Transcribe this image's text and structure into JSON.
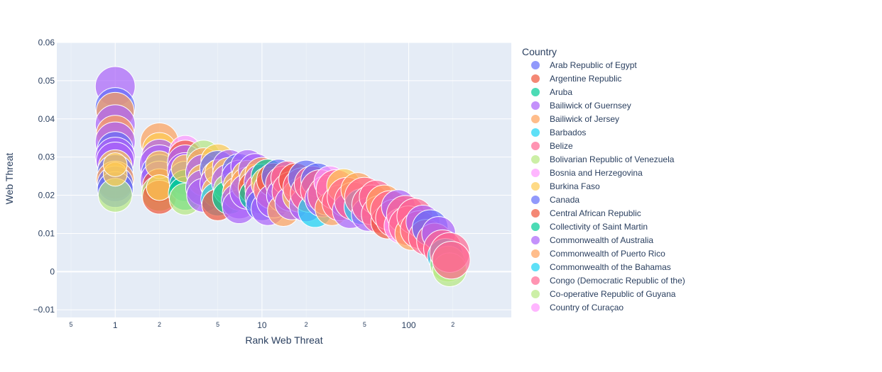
{
  "chart_data": {
    "type": "scatter",
    "title": "",
    "xlabel": "Rank Web Threat",
    "ylabel": "Web Threat",
    "x_scale": "log",
    "xlim": [
      0.4,
      500
    ],
    "ylim": [
      -0.012,
      0.06
    ],
    "grid": true,
    "legend_position": "right",
    "legend_title": "Country",
    "y_ticks": [
      "−0.01",
      "0",
      "0.01",
      "0.02",
      "0.03",
      "0.04",
      "0.05",
      "0.06"
    ],
    "y_tick_values": [
      -0.01,
      0,
      0.01,
      0.02,
      0.03,
      0.04,
      0.05,
      0.06
    ],
    "x_major_ticks": [
      {
        "value": 1,
        "label": "1"
      },
      {
        "value": 10,
        "label": "10"
      },
      {
        "value": 100,
        "label": "100"
      }
    ],
    "x_minor_ticks": [
      {
        "value": 0.5,
        "label": "5"
      },
      {
        "value": 2,
        "label": "2"
      },
      {
        "value": 5,
        "label": "5"
      },
      {
        "value": 20,
        "label": "2"
      },
      {
        "value": 50,
        "label": "5"
      },
      {
        "value": 200,
        "label": "2"
      }
    ],
    "series": [
      {
        "name": "Arab Republic of Egypt",
        "color": "#636efa"
      },
      {
        "name": "Argentine Republic",
        "color": "#EF553B"
      },
      {
        "name": "Aruba",
        "color": "#00cc96"
      },
      {
        "name": "Bailiwick of Guernsey",
        "color": "#ab63fa"
      },
      {
        "name": "Bailiwick of Jersey",
        "color": "#FFA15A"
      },
      {
        "name": "Barbados",
        "color": "#19d3f3"
      },
      {
        "name": "Belize",
        "color": "#FF6692"
      },
      {
        "name": "Bolivarian Republic of Venezuela",
        "color": "#B6E880"
      },
      {
        "name": "Bosnia and Herzegovina",
        "color": "#FF97FF"
      },
      {
        "name": "Burkina Faso",
        "color": "#FECB52"
      },
      {
        "name": "Canada",
        "color": "#636efa"
      },
      {
        "name": "Central African Republic",
        "color": "#EF553B"
      },
      {
        "name": "Collectivity of Saint Martin",
        "color": "#00cc96"
      },
      {
        "name": "Commonwealth of Australia",
        "color": "#ab63fa"
      },
      {
        "name": "Commonwealth of Puerto Rico",
        "color": "#FFA15A"
      },
      {
        "name": "Commonwealth of the Bahamas",
        "color": "#19d3f3"
      },
      {
        "name": "Congo (Democratic Republic of the)",
        "color": "#FF6692"
      },
      {
        "name": "Co-operative Republic of Guyana",
        "color": "#B6E880"
      },
      {
        "name": "Country of Curaçao",
        "color": "#FF97FF"
      }
    ],
    "points": [
      {
        "x": 1,
        "y": 0.0485,
        "s": 1.0,
        "c": 3
      },
      {
        "x": 1,
        "y": 0.043,
        "s": 1.0,
        "c": 0
      },
      {
        "x": 1,
        "y": 0.042,
        "s": 0.95,
        "c": 4
      },
      {
        "x": 1,
        "y": 0.0385,
        "s": 1.0,
        "c": 3
      },
      {
        "x": 1,
        "y": 0.036,
        "s": 0.95,
        "c": 4
      },
      {
        "x": 1,
        "y": 0.034,
        "s": 1.0,
        "c": 3
      },
      {
        "x": 1,
        "y": 0.032,
        "s": 0.9,
        "c": 0
      },
      {
        "x": 1,
        "y": 0.03,
        "s": 1.0,
        "c": 13
      },
      {
        "x": 1,
        "y": 0.029,
        "s": 0.95,
        "c": 3
      },
      {
        "x": 1,
        "y": 0.0275,
        "s": 0.85,
        "c": 9
      },
      {
        "x": 1,
        "y": 0.026,
        "s": 0.9,
        "c": 10
      },
      {
        "x": 1,
        "y": 0.024,
        "s": 0.95,
        "c": 4
      },
      {
        "x": 1,
        "y": 0.023,
        "s": 0.9,
        "c": 0
      },
      {
        "x": 1,
        "y": 0.0215,
        "s": 0.9,
        "c": 10
      },
      {
        "x": 1,
        "y": 0.02,
        "s": 0.85,
        "c": 7
      },
      {
        "x": 1,
        "y": 0.0255,
        "s": 0.6,
        "c": 9
      },
      {
        "x": 1,
        "y": 0.028,
        "s": 0.6,
        "c": 9
      },
      {
        "x": 2,
        "y": 0.034,
        "s": 0.95,
        "c": 4
      },
      {
        "x": 2,
        "y": 0.032,
        "s": 0.85,
        "c": 9
      },
      {
        "x": 2,
        "y": 0.03,
        "s": 0.9,
        "c": 13
      },
      {
        "x": 2,
        "y": 0.028,
        "s": 1.0,
        "c": 3
      },
      {
        "x": 2,
        "y": 0.026,
        "s": 0.9,
        "c": 0
      },
      {
        "x": 2,
        "y": 0.024,
        "s": 0.95,
        "c": 3
      },
      {
        "x": 2,
        "y": 0.0225,
        "s": 0.85,
        "c": 1
      },
      {
        "x": 2,
        "y": 0.0205,
        "s": 0.9,
        "c": 7
      },
      {
        "x": 2,
        "y": 0.0195,
        "s": 0.85,
        "c": 11
      },
      {
        "x": 2,
        "y": 0.028,
        "s": 0.7,
        "c": 9
      },
      {
        "x": 2,
        "y": 0.022,
        "s": 0.65,
        "c": 9
      },
      {
        "x": 3,
        "y": 0.0315,
        "s": 0.8,
        "c": 8
      },
      {
        "x": 3,
        "y": 0.03,
        "s": 0.85,
        "c": 1
      },
      {
        "x": 3,
        "y": 0.0285,
        "s": 0.9,
        "c": 13
      },
      {
        "x": 3,
        "y": 0.0265,
        "s": 0.9,
        "c": 3
      },
      {
        "x": 3,
        "y": 0.0245,
        "s": 0.85,
        "c": 0
      },
      {
        "x": 3,
        "y": 0.0225,
        "s": 0.8,
        "c": 2
      },
      {
        "x": 3,
        "y": 0.0205,
        "s": 0.85,
        "c": 12
      },
      {
        "x": 3,
        "y": 0.019,
        "s": 0.8,
        "c": 7
      },
      {
        "x": 3,
        "y": 0.027,
        "s": 0.7,
        "c": 9
      },
      {
        "x": 4,
        "y": 0.03,
        "s": 0.85,
        "c": 7
      },
      {
        "x": 4,
        "y": 0.028,
        "s": 0.85,
        "c": 4
      },
      {
        "x": 4,
        "y": 0.026,
        "s": 0.9,
        "c": 3
      },
      {
        "x": 4,
        "y": 0.024,
        "s": 0.8,
        "c": 9
      },
      {
        "x": 4,
        "y": 0.022,
        "s": 0.9,
        "c": 13
      },
      {
        "x": 4,
        "y": 0.02,
        "s": 0.85,
        "c": 3
      },
      {
        "x": 5,
        "y": 0.029,
        "s": 0.85,
        "c": 9
      },
      {
        "x": 5,
        "y": 0.027,
        "s": 0.9,
        "c": 0
      },
      {
        "x": 5,
        "y": 0.025,
        "s": 0.8,
        "c": 4
      },
      {
        "x": 5,
        "y": 0.023,
        "s": 0.9,
        "c": 3
      },
      {
        "x": 5,
        "y": 0.021,
        "s": 0.8,
        "c": 9
      },
      {
        "x": 5,
        "y": 0.019,
        "s": 0.85,
        "c": 5
      },
      {
        "x": 5,
        "y": 0.0175,
        "s": 0.8,
        "c": 1
      },
      {
        "x": 5,
        "y": 0.026,
        "s": 0.65,
        "c": 9
      },
      {
        "x": 6,
        "y": 0.0275,
        "s": 0.85,
        "c": 13
      },
      {
        "x": 6,
        "y": 0.0255,
        "s": 0.85,
        "c": 9
      },
      {
        "x": 6,
        "y": 0.0235,
        "s": 0.9,
        "c": 3
      },
      {
        "x": 6,
        "y": 0.0215,
        "s": 0.8,
        "c": 7
      },
      {
        "x": 6,
        "y": 0.0195,
        "s": 0.85,
        "c": 2
      },
      {
        "x": 7,
        "y": 0.0265,
        "s": 0.85,
        "c": 0
      },
      {
        "x": 7,
        "y": 0.0245,
        "s": 0.9,
        "c": 3
      },
      {
        "x": 7,
        "y": 0.0225,
        "s": 0.8,
        "c": 9
      },
      {
        "x": 7,
        "y": 0.0205,
        "s": 0.85,
        "c": 4
      },
      {
        "x": 7,
        "y": 0.0185,
        "s": 0.9,
        "c": 13
      },
      {
        "x": 7,
        "y": 0.017,
        "s": 0.85,
        "c": 3
      },
      {
        "x": 8,
        "y": 0.0275,
        "s": 0.85,
        "c": 13
      },
      {
        "x": 8,
        "y": 0.025,
        "s": 0.8,
        "c": 9
      },
      {
        "x": 8,
        "y": 0.023,
        "s": 0.85,
        "c": 4
      },
      {
        "x": 8,
        "y": 0.021,
        "s": 0.9,
        "c": 3
      },
      {
        "x": 9,
        "y": 0.0265,
        "s": 0.85,
        "c": 3
      },
      {
        "x": 9,
        "y": 0.024,
        "s": 0.8,
        "c": 9
      },
      {
        "x": 9,
        "y": 0.022,
        "s": 0.85,
        "c": 11
      },
      {
        "x": 9,
        "y": 0.02,
        "s": 0.8,
        "c": 2
      },
      {
        "x": 10,
        "y": 0.0255,
        "s": 0.85,
        "c": 4
      },
      {
        "x": 10,
        "y": 0.0235,
        "s": 0.9,
        "c": 13
      },
      {
        "x": 10,
        "y": 0.0215,
        "s": 0.85,
        "c": 6
      },
      {
        "x": 10,
        "y": 0.0195,
        "s": 0.85,
        "c": 3
      },
      {
        "x": 10,
        "y": 0.0175,
        "s": 0.8,
        "c": 0
      },
      {
        "x": 11,
        "y": 0.025,
        "s": 0.85,
        "c": 2
      },
      {
        "x": 11,
        "y": 0.023,
        "s": 0.85,
        "c": 9
      },
      {
        "x": 11,
        "y": 0.0165,
        "s": 0.85,
        "c": 3
      },
      {
        "x": 12,
        "y": 0.0215,
        "s": 1.0,
        "c": 6
      },
      {
        "x": 12,
        "y": 0.024,
        "s": 0.85,
        "c": 11
      },
      {
        "x": 12,
        "y": 0.0185,
        "s": 0.85,
        "c": 13
      },
      {
        "x": 13,
        "y": 0.025,
        "s": 0.85,
        "c": 0
      },
      {
        "x": 14,
        "y": 0.023,
        "s": 0.9,
        "c": 6
      },
      {
        "x": 14,
        "y": 0.02,
        "s": 0.85,
        "c": 3
      },
      {
        "x": 14,
        "y": 0.016,
        "s": 0.8,
        "c": 4
      },
      {
        "x": 15,
        "y": 0.0245,
        "s": 0.85,
        "c": 16
      },
      {
        "x": 16,
        "y": 0.021,
        "s": 1.0,
        "c": 6
      },
      {
        "x": 16,
        "y": 0.018,
        "s": 0.85,
        "c": 3
      },
      {
        "x": 17,
        "y": 0.024,
        "s": 0.85,
        "c": 11
      },
      {
        "x": 18,
        "y": 0.02,
        "s": 0.85,
        "c": 9
      },
      {
        "x": 19,
        "y": 0.022,
        "s": 1.0,
        "c": 6
      },
      {
        "x": 20,
        "y": 0.0245,
        "s": 0.9,
        "c": 0
      },
      {
        "x": 20,
        "y": 0.0175,
        "s": 0.85,
        "c": 3
      },
      {
        "x": 21,
        "y": 0.0205,
        "s": 0.95,
        "c": 6
      },
      {
        "x": 22,
        "y": 0.023,
        "s": 0.9,
        "c": 16
      },
      {
        "x": 23,
        "y": 0.016,
        "s": 0.85,
        "c": 15
      },
      {
        "x": 24,
        "y": 0.024,
        "s": 0.85,
        "c": 0
      },
      {
        "x": 25,
        "y": 0.0215,
        "s": 1.0,
        "c": 6
      },
      {
        "x": 26,
        "y": 0.019,
        "s": 0.9,
        "c": 3
      },
      {
        "x": 28,
        "y": 0.02,
        "s": 1.0,
        "c": 6
      },
      {
        "x": 29,
        "y": 0.0235,
        "s": 0.8,
        "c": 8
      },
      {
        "x": 30,
        "y": 0.0165,
        "s": 0.85,
        "c": 4
      },
      {
        "x": 32,
        "y": 0.0215,
        "s": 1.0,
        "c": 6
      },
      {
        "x": 34,
        "y": 0.018,
        "s": 0.9,
        "c": 6
      },
      {
        "x": 36,
        "y": 0.0225,
        "s": 0.85,
        "c": 9
      },
      {
        "x": 38,
        "y": 0.0195,
        "s": 1.0,
        "c": 6
      },
      {
        "x": 40,
        "y": 0.016,
        "s": 0.9,
        "c": 3
      },
      {
        "x": 42,
        "y": 0.0185,
        "s": 0.95,
        "c": 6
      },
      {
        "x": 45,
        "y": 0.0215,
        "s": 0.85,
        "c": 4
      },
      {
        "x": 48,
        "y": 0.017,
        "s": 0.9,
        "c": 5
      },
      {
        "x": 50,
        "y": 0.0195,
        "s": 1.0,
        "c": 6
      },
      {
        "x": 53,
        "y": 0.015,
        "s": 0.85,
        "c": 3
      },
      {
        "x": 56,
        "y": 0.0175,
        "s": 1.0,
        "c": 6
      },
      {
        "x": 60,
        "y": 0.0195,
        "s": 0.85,
        "c": 16
      },
      {
        "x": 64,
        "y": 0.015,
        "s": 0.95,
        "c": 6
      },
      {
        "x": 68,
        "y": 0.018,
        "s": 0.9,
        "c": 4
      },
      {
        "x": 72,
        "y": 0.013,
        "s": 0.85,
        "c": 1
      },
      {
        "x": 75,
        "y": 0.016,
        "s": 1.0,
        "c": 6
      },
      {
        "x": 80,
        "y": 0.014,
        "s": 0.95,
        "c": 6
      },
      {
        "x": 85,
        "y": 0.017,
        "s": 0.85,
        "c": 3
      },
      {
        "x": 90,
        "y": 0.012,
        "s": 0.9,
        "c": 8
      },
      {
        "x": 95,
        "y": 0.015,
        "s": 0.95,
        "c": 6
      },
      {
        "x": 100,
        "y": 0.012,
        "s": 1.0,
        "c": 6
      },
      {
        "x": 105,
        "y": 0.01,
        "s": 0.85,
        "c": 4
      },
      {
        "x": 110,
        "y": 0.0145,
        "s": 0.9,
        "c": 16
      },
      {
        "x": 118,
        "y": 0.011,
        "s": 0.95,
        "c": 6
      },
      {
        "x": 125,
        "y": 0.013,
        "s": 0.85,
        "c": 3
      },
      {
        "x": 132,
        "y": 0.009,
        "s": 0.9,
        "c": 6
      },
      {
        "x": 140,
        "y": 0.0115,
        "s": 0.9,
        "c": 0
      },
      {
        "x": 150,
        "y": 0.008,
        "s": 0.9,
        "c": 6
      },
      {
        "x": 160,
        "y": 0.01,
        "s": 0.85,
        "c": 3
      },
      {
        "x": 170,
        "y": 0.006,
        "s": 0.95,
        "c": 6
      },
      {
        "x": 178,
        "y": 0.004,
        "s": 0.9,
        "c": 5
      },
      {
        "x": 185,
        "y": 0.002,
        "s": 0.9,
        "c": 7
      },
      {
        "x": 190,
        "y": 0.0005,
        "s": 0.85,
        "c": 7
      },
      {
        "x": 190,
        "y": 0.005,
        "s": 1.0,
        "c": 6
      },
      {
        "x": 195,
        "y": 0.003,
        "s": 0.95,
        "c": 6
      }
    ]
  }
}
